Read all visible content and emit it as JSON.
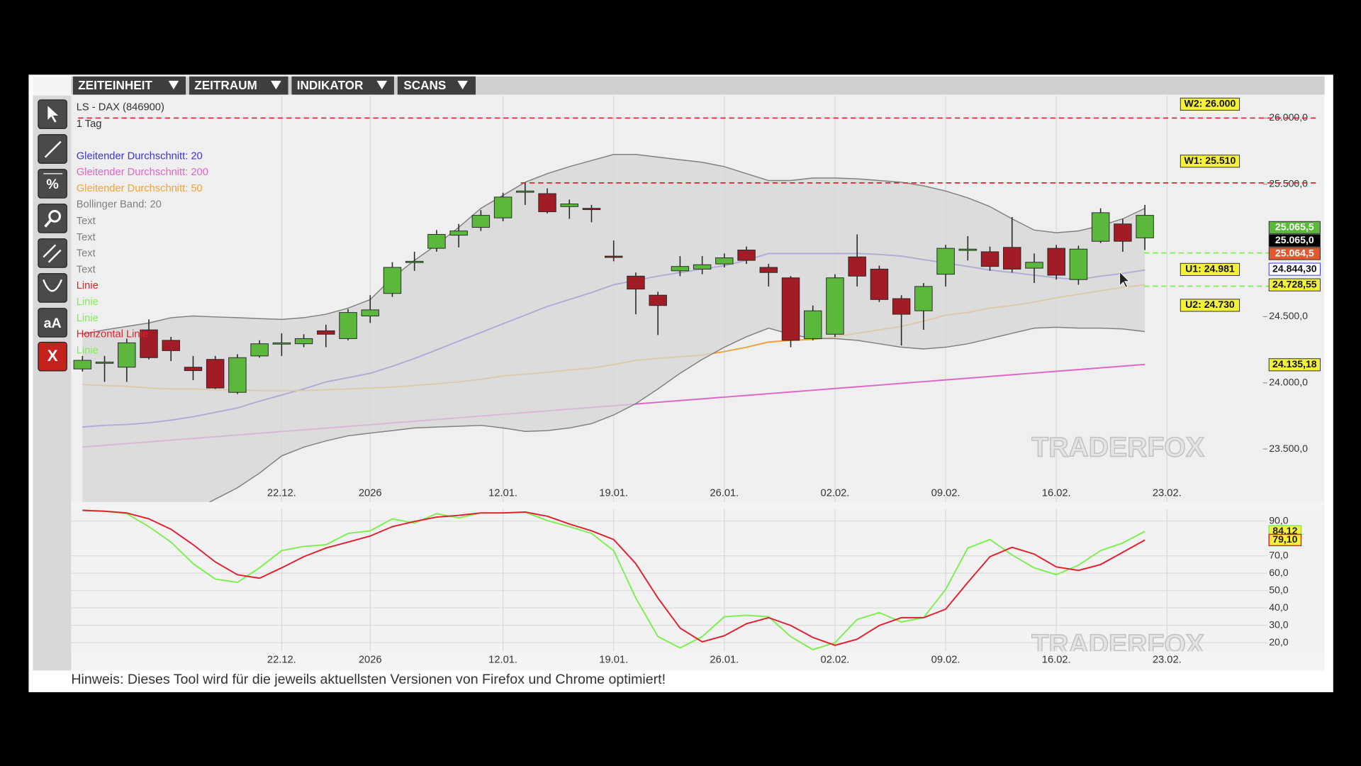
{
  "menu": [
    "ZEITEINHEIT",
    "ZEITRAUM",
    "INDIKATOR",
    "SCANS"
  ],
  "tools": {
    "percent": "%",
    "text": "aA",
    "delete": "X"
  },
  "hint": "Hinweis: Dieses Tool wird für die jeweils aktuellsten Versionen von Firefox und Chrome optimiert!",
  "chart_data": [
    {
      "type": "candlestick",
      "title": "LS - DAX (846900)",
      "subtitle": "1 Tag",
      "watermark": "TRADERFOX",
      "categories": [
        null,
        null,
        null,
        null,
        null,
        null,
        null,
        null,
        null,
        "22.12.",
        null,
        null,
        null,
        "2026",
        null,
        null,
        null,
        null,
        null,
        "12.01.",
        null,
        null,
        null,
        null,
        "19.01.",
        null,
        null,
        null,
        null,
        "26.01.",
        null,
        null,
        null,
        null,
        "02.02.",
        null,
        null,
        null,
        null,
        "09.02.",
        null,
        null,
        null,
        null,
        "16.02.",
        null,
        null,
        null,
        null,
        "23.02."
      ],
      "open": [
        24105,
        24150,
        24118,
        24400,
        24321,
        24118,
        24177,
        23928,
        24203,
        24295,
        24295,
        24393,
        24334,
        24505,
        24675,
        24911,
        25016,
        25115,
        25174,
        25246,
        25442,
        25429,
        25331,
        25318,
        24957,
        24806,
        24662,
        24846,
        24859,
        24898,
        25003,
        24872,
        24793,
        24334,
        24367,
        24951,
        24859,
        24636,
        24544,
        24820,
        25003,
        24990,
        25023,
        24866,
        25016,
        24780,
        25069,
        25200,
        25095,
        null
      ],
      "high": [
        24203,
        24203,
        24334,
        24479,
        24347,
        24203,
        24203,
        24216,
        24321,
        24374,
        24367,
        24439,
        24557,
        24662,
        24911,
        24990,
        25154,
        25200,
        25305,
        25436,
        25515,
        25469,
        25384,
        25344,
        25075,
        24833,
        24688,
        24957,
        24957,
        24977,
        25029,
        24898,
        24806,
        24584,
        24820,
        25121,
        24885,
        24662,
        24754,
        25042,
        25108,
        25029,
        25252,
        24977,
        25042,
        25036,
        25318,
        25239,
        25344,
        null
      ],
      "low": [
        24085,
        24007,
        24007,
        24177,
        24164,
        24020,
        23954,
        23915,
        24190,
        24203,
        24269,
        24269,
        24321,
        24452,
        24649,
        24846,
        24990,
        25023,
        25147,
        25220,
        25344,
        25279,
        25239,
        25213,
        24918,
        24518,
        24361,
        24806,
        24820,
        24872,
        24898,
        24728,
        24269,
        24321,
        24347,
        24728,
        24610,
        24282,
        24400,
        24728,
        24924,
        24846,
        24833,
        24754,
        24780,
        24741,
        25056,
        24990,
        25003,
        null
      ],
      "close": [
        24170,
        24157,
        24302,
        24190,
        24243,
        24092,
        23961,
        24190,
        24295,
        24302,
        24334,
        24367,
        24531,
        24551,
        24872,
        24918,
        25121,
        25147,
        25265,
        25403,
        25449,
        25292,
        25351,
        25311,
        24951,
        24708,
        24584,
        24879,
        24892,
        24944,
        24925,
        24833,
        24321,
        24544,
        24793,
        24806,
        24629,
        24518,
        24728,
        25016,
        25010,
        24879,
        24859,
        24911,
        24813,
        25010,
        25285,
        25069,
        25265,
        null
      ],
      "up_color": "#5cb83c",
      "down_color": "#a11c25",
      "overlays": [
        {
          "name": "Gleitender Durchschnitt: 20",
          "color": "#3a35d6",
          "values": [
            23666,
            23679,
            23685,
            23698,
            23718,
            23744,
            23777,
            23810,
            23862,
            23908,
            23954,
            24007,
            24039,
            24072,
            24125,
            24184,
            24249,
            24315,
            24380,
            24446,
            24511,
            24577,
            24629,
            24682,
            24741,
            24774,
            24806,
            24833,
            24859,
            24885,
            24925,
            24977,
            24977,
            24977,
            24977,
            24977,
            24970,
            24957,
            24931,
            24905,
            24879,
            24852,
            24833,
            24813,
            24793,
            24780,
            24806,
            24826,
            24852,
            null
          ]
        },
        {
          "name": "Gleitender Durchschnitt: 200",
          "color": "#e066c6",
          "values": [
            23515,
            23528,
            23541,
            23554,
            23567,
            23580,
            23593,
            23606,
            23619,
            23632,
            23645,
            23658,
            23671,
            23684,
            23697,
            23710,
            23723,
            23736,
            23749,
            23762,
            23775,
            23788,
            23801,
            23814,
            23827,
            23840,
            23853,
            23866,
            23879,
            23892,
            23905,
            23918,
            23931,
            23944,
            23957,
            23970,
            23983,
            23996,
            24009,
            24022,
            24035,
            24048,
            24061,
            24074,
            24087,
            24100,
            24113,
            24126,
            24139,
            null
          ]
        },
        {
          "name": "Gleitender Durchschnitt: 50",
          "color": "#f0a43a",
          "values": [
            23987,
            23980,
            23974,
            23961,
            23954,
            23954,
            23948,
            23948,
            23941,
            23941,
            23941,
            23948,
            23954,
            23961,
            23967,
            23980,
            23993,
            24007,
            24026,
            24052,
            24066,
            24079,
            24098,
            24111,
            24138,
            24170,
            24184,
            24197,
            24210,
            24236,
            24269,
            24308,
            24321,
            24328,
            24347,
            24374,
            24400,
            24426,
            24466,
            24511,
            24531,
            24564,
            24584,
            24610,
            24643,
            24669,
            24695,
            24721,
            24741,
            null
          ]
        },
        {
          "name": "Bollinger Band: 20",
          "color": "#808080",
          "upper": [
            24367,
            24400,
            24426,
            24452,
            24492,
            24505,
            24498,
            24492,
            24485,
            24479,
            24492,
            24518,
            24564,
            24629,
            24793,
            24925,
            25043,
            25174,
            25318,
            25416,
            25515,
            25580,
            25633,
            25679,
            25725,
            25725,
            25705,
            25685,
            25666,
            25633,
            25580,
            25528,
            25528,
            25547,
            25547,
            25541,
            25528,
            25515,
            25488,
            25449,
            25397,
            25331,
            25239,
            25154,
            25134,
            25147,
            25187,
            25239,
            25318,
            null
          ],
          "lower": [
            22433,
            22564,
            22695,
            22826,
            22957,
            23036,
            23121,
            23207,
            23318,
            23448,
            23514,
            23561,
            23600,
            23620,
            23639,
            23659,
            23666,
            23672,
            23679,
            23659,
            23633,
            23639,
            23659,
            23692,
            23757,
            23843,
            23954,
            24072,
            24177,
            24269,
            24348,
            24413,
            24367,
            24334,
            24334,
            24321,
            24295,
            24269,
            24256,
            24269,
            24295,
            24334,
            24374,
            24413,
            24420,
            24413,
            24413,
            24407,
            24387,
            null
          ]
        }
      ],
      "drawings": [
        {
          "name": "Text",
          "color": "#808080"
        },
        {
          "name": "Text",
          "color": "#808080"
        },
        {
          "name": "Text",
          "color": "#808080"
        },
        {
          "name": "Text",
          "color": "#808080"
        },
        {
          "name": "Linie",
          "color": "#e0202e"
        },
        {
          "name": "Linie",
          "color": "#7cf050"
        },
        {
          "name": "Linie",
          "color": "#7cf050"
        },
        {
          "name": "Horizontal Linie",
          "color": "#e0202e"
        },
        {
          "name": "Linie",
          "color": "#7cf050"
        }
      ],
      "horizontal_lines": [
        {
          "label": "W2: 26.000",
          "value": 26000,
          "color": "#e0202e"
        },
        {
          "label": "W1: 25.510",
          "value": 25510,
          "color": "#e0202e"
        },
        {
          "label": "U1: 24.981",
          "value": 24981,
          "color": "#7cf050"
        },
        {
          "label": "U2: 24.730",
          "value": 24730,
          "color": "#7cf050"
        }
      ],
      "price_labels": [
        {
          "label": "25.065,5",
          "color": "#5cb83c"
        },
        {
          "label": "25.065,0",
          "color": "#000000"
        },
        {
          "label": "25.064,5",
          "color": "#e3582c"
        },
        {
          "label": "24.844,30",
          "color": "#ffffff"
        },
        {
          "label": "24.728,55",
          "color": "#f4f236"
        },
        {
          "label": "24.135,18",
          "color": "#f4f236"
        }
      ],
      "ylim": [
        23100,
        26170
      ],
      "yticks": [
        {
          "value": 23500,
          "label": "23.500,0"
        },
        {
          "value": 24000,
          "label": "24.000,0"
        },
        {
          "value": 24500,
          "label": "24.500,0"
        },
        {
          "value": 25500,
          "label": "25.500,0"
        },
        {
          "value": 26000,
          "label": "26.000,0"
        }
      ],
      "grid": false
    },
    {
      "type": "line",
      "watermark": "TRADERFOX",
      "categories": [
        null,
        null,
        null,
        null,
        null,
        null,
        null,
        null,
        null,
        "22.12.",
        null,
        null,
        null,
        "2026",
        null,
        null,
        null,
        null,
        null,
        "12.01.",
        null,
        null,
        null,
        null,
        "19.01.",
        null,
        null,
        null,
        null,
        "26.01.",
        null,
        null,
        null,
        null,
        "02.02.",
        null,
        null,
        null,
        null,
        "09.02.",
        null,
        null,
        null,
        null,
        "16.02.",
        null,
        null,
        null,
        null,
        "23.02."
      ],
      "series": [
        {
          "color": "#7cf050",
          "last_label": "84,12",
          "values": [
            96.2,
            95.7,
            94.3,
            86.8,
            77.9,
            65.5,
            56.6,
            54.7,
            63.1,
            73.0,
            75.4,
            76.4,
            82.9,
            84.4,
            91.3,
            88.8,
            94.3,
            91.8,
            94.7,
            94.7,
            95.2,
            90.3,
            86.8,
            82.9,
            73.0,
            45.7,
            23.5,
            17.0,
            23.5,
            34.9,
            35.8,
            34.9,
            23.5,
            16.0,
            20.0,
            33.4,
            37.3,
            31.9,
            34.4,
            50.7,
            74.5,
            79.4,
            70.5,
            63.1,
            59.1,
            64.6,
            73.0,
            77.4,
            84.12,
            null
          ]
        },
        {
          "color": "#e0202e",
          "last_label": "79,10",
          "values": [
            96.2,
            95.7,
            94.7,
            91.3,
            85.3,
            76.4,
            66.5,
            59.1,
            57.1,
            63.1,
            69.5,
            74.5,
            77.9,
            81.4,
            86.8,
            89.8,
            92.3,
            93.3,
            94.7,
            94.7,
            95.2,
            92.8,
            88.3,
            84.4,
            79.4,
            65.5,
            45.7,
            28.4,
            20.5,
            24.0,
            30.9,
            34.4,
            29.9,
            23.0,
            18.5,
            22.0,
            29.9,
            34.4,
            34.4,
            39.3,
            54.7,
            69.5,
            74.9,
            71.0,
            63.6,
            61.6,
            65.0,
            72.0,
            79.1,
            null
          ]
        }
      ],
      "ylim": [
        15,
        97
      ],
      "yticks": [
        {
          "value": 20,
          "label": "20,0"
        },
        {
          "value": 30,
          "label": "30,0"
        },
        {
          "value": 40,
          "label": "40,0"
        },
        {
          "value": 50,
          "label": "50,0"
        },
        {
          "value": 60,
          "label": "60,0"
        },
        {
          "value": 70,
          "label": "70,0"
        },
        {
          "value": 90,
          "label": "90,0"
        }
      ],
      "grid": true
    }
  ]
}
